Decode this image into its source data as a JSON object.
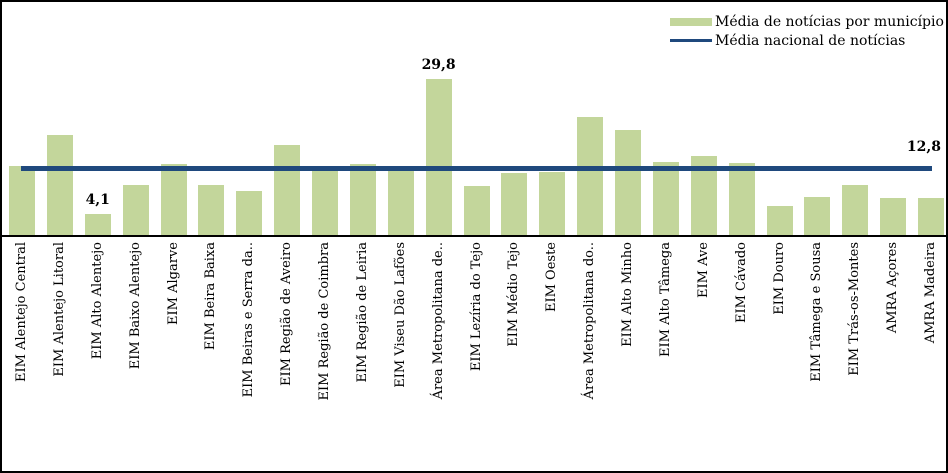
{
  "chart_data": {
    "type": "bar",
    "title": "",
    "xlabel": "",
    "ylabel": "",
    "ylim": [
      0,
      32
    ],
    "grid": false,
    "legend_position": "top-right",
    "x_labels_rotation": 90,
    "categories": [
      "EIM Alentejo Central",
      "EIM Alentejo Litoral",
      "EIM Alto Alentejo",
      "EIM Baixo Alentejo",
      "EIM Algarve",
      "EIM Beira Baixa",
      "EIM Beiras e Serra da..",
      "EIM Região de Aveiro",
      "EIM Região de Coimbra",
      "EIM Região de Leiria",
      "EIM Viseu Dão Lafões",
      "Área Metropolitana de..",
      "EIM Lezíria do Tejo",
      "EIM Médio Tejo",
      "EIM Oeste",
      "Área Metropolitana do..",
      "EIM Alto Minho",
      "EIM Alto Tâmega",
      "EIM Ave",
      "EIM Cávado",
      "EIM Douro",
      "EIM Tâmega e Sousa",
      "EIM Trás-os-Montes",
      "AMRA Açores",
      "AMRA Madeira"
    ],
    "series": [
      {
        "name": "Média de notícias por município",
        "type": "bar",
        "color": "#c3d69b",
        "values": [
          13.2,
          19.2,
          4.1,
          9.6,
          13.6,
          9.6,
          8.4,
          17.2,
          12.2,
          13.6,
          12.2,
          29.8,
          9.3,
          11.9,
          12.0,
          22.5,
          20.0,
          14.0,
          15.1,
          13.8,
          5.6,
          7.3,
          9.6,
          7.1,
          7.1
        ]
      },
      {
        "name": "Média nacional de notícias",
        "type": "line",
        "color": "#1f497d",
        "value": 12.8,
        "label": "12,8"
      }
    ],
    "bar_value_labels": [
      {
        "index": 2,
        "text": "4,1"
      },
      {
        "index": 11,
        "text": "29,8"
      }
    ]
  },
  "colors": {
    "bar": "#c3d69b",
    "national_line": "#1f497d",
    "axis": "#000000",
    "border": "#000000",
    "background": "#ffffff"
  }
}
